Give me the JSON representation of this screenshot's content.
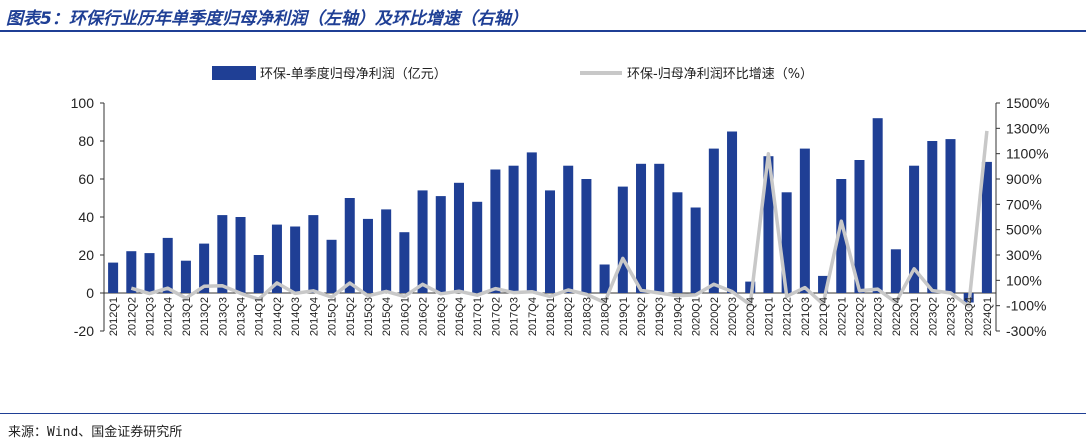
{
  "title": "图表5：环保行业历年单季度归母净利润（左轴）及环比增速（右轴）",
  "source": "来源：Wind、国金证券研究所",
  "chart_data": {
    "type": "bar",
    "categories": [
      "2012Q1",
      "2012Q2",
      "2012Q3",
      "2012Q4",
      "2013Q1",
      "2013Q2",
      "2013Q3",
      "2013Q4",
      "2014Q1",
      "2014Q2",
      "2014Q3",
      "2014Q4",
      "2015Q1",
      "2015Q2",
      "2015Q3",
      "2015Q4",
      "2016Q1",
      "2016Q2",
      "2016Q3",
      "2016Q4",
      "2017Q1",
      "2017Q2",
      "2017Q3",
      "2017Q4",
      "2018Q1",
      "2018Q2",
      "2018Q3",
      "2018Q4",
      "2019Q1",
      "2019Q2",
      "2019Q3",
      "2019Q4",
      "2020Q1",
      "2020Q2",
      "2020Q3",
      "2020Q4",
      "2021Q1",
      "2021Q2",
      "2021Q3",
      "2021Q4",
      "2022Q1",
      "2022Q2",
      "2022Q3",
      "2022Q4",
      "2023Q1",
      "2023Q2",
      "2023Q3",
      "2023Q4",
      "2024Q1"
    ],
    "series": [
      {
        "name": "环保-单季度归母净利润（亿元）",
        "axis": "left",
        "kind": "bar",
        "color": "#1f3f95",
        "values": [
          16,
          22,
          21,
          29,
          17,
          26,
          41,
          40,
          20,
          36,
          35,
          41,
          28,
          50,
          39,
          44,
          32,
          54,
          51,
          58,
          48,
          65,
          67,
          74,
          54,
          67,
          60,
          15,
          56,
          68,
          68,
          53,
          45,
          76,
          85,
          6,
          72,
          53,
          76,
          9,
          60,
          70,
          92,
          23,
          67,
          80,
          81,
          -5,
          69
        ]
      },
      {
        "name": "环保-归母净利润环比增速（%）",
        "axis": "right",
        "kind": "line",
        "color": "#c8c8c8",
        "values": [
          null,
          38,
          -5,
          38,
          -41,
          53,
          58,
          -2,
          -50,
          80,
          -3,
          17,
          -32,
          79,
          -22,
          13,
          -27,
          69,
          -6,
          14,
          -17,
          35,
          3,
          10,
          -27,
          24,
          -10,
          -75,
          273,
          21,
          0,
          -22,
          -15,
          69,
          12,
          -93,
          1100,
          -26,
          43,
          -88,
          567,
          17,
          31,
          -75,
          191,
          19,
          1,
          -106,
          1280
        ]
      }
    ],
    "y_left": {
      "min": -20,
      "max": 100,
      "ticks": [
        "-20",
        "0",
        "20",
        "40",
        "60",
        "80",
        "100"
      ]
    },
    "y_right": {
      "min": -300,
      "max": 1500,
      "ticks": [
        "-300%",
        "-100%",
        "100%",
        "300%",
        "500%",
        "700%",
        "900%",
        "1100%",
        "1300%",
        "1500%"
      ]
    },
    "grid": false,
    "legend_position": "top"
  }
}
